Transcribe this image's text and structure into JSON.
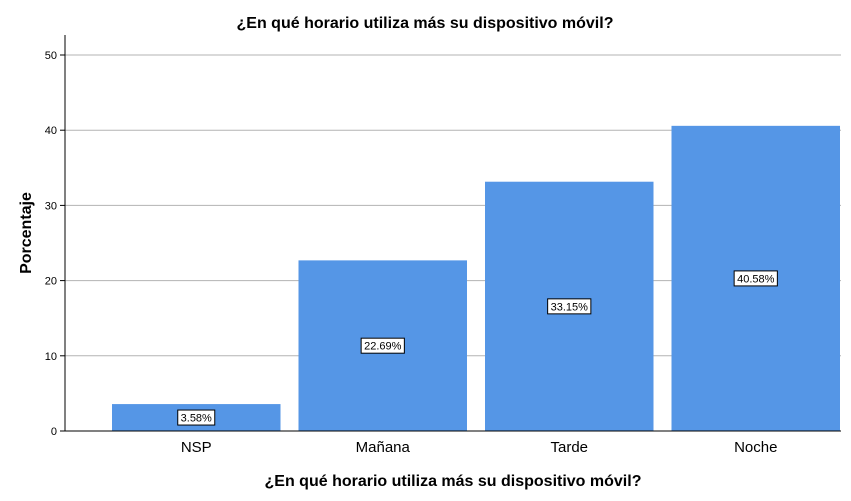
{
  "chart_data": {
    "type": "bar",
    "title": "¿En qué horario utiliza más su dispositivo móvil?",
    "xlabel": "¿En qué horario utiliza más su dispositivo móvil?",
    "ylabel": "Porcentaje",
    "categories": [
      "NSP",
      "Mañana",
      "Tarde",
      "Noche"
    ],
    "values": [
      3.58,
      22.69,
      33.15,
      40.58
    ],
    "data_labels": [
      "3.58%",
      "22.69%",
      "33.15%",
      "40.58%"
    ],
    "ylim": [
      0,
      50
    ],
    "yticks": [
      "0",
      "10",
      "20",
      "30",
      "40",
      "50"
    ],
    "grid": true,
    "bar_color": "#5596e6",
    "grid_color": "#b3b3b3"
  }
}
